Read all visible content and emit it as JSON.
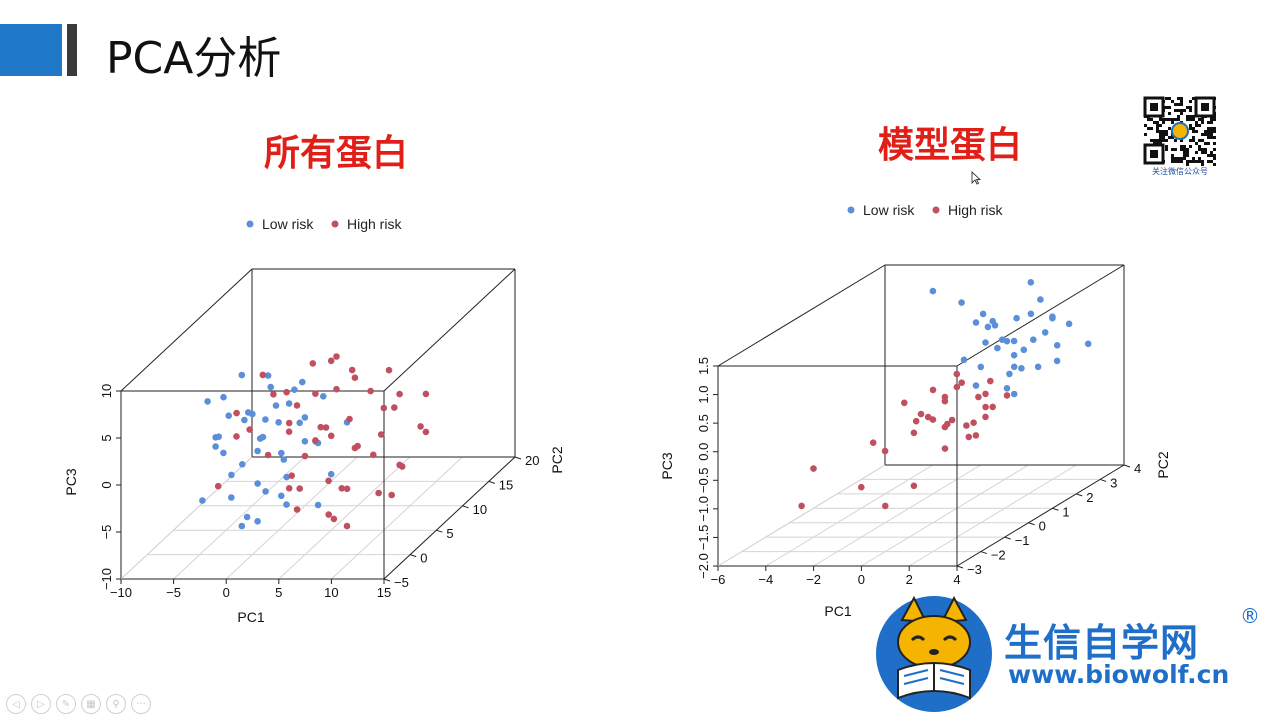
{
  "header": {
    "title": "PCA分析"
  },
  "panels": [
    {
      "title": "所有蛋白"
    },
    {
      "title": "模型蛋白"
    }
  ],
  "colors": {
    "low_risk": "#5b8fd9",
    "high_risk": "#c0505f",
    "accent_blue": "#1f78c8",
    "title_red": "#e02018"
  },
  "qr": {
    "caption": "关注微信公众号"
  },
  "logo": {
    "name": "生信自学网",
    "reg": "®",
    "url": "www.biowolf.cn"
  },
  "controls": [
    {
      "icon": "prev-icon",
      "glyph": "◁"
    },
    {
      "icon": "next-icon",
      "glyph": "▷"
    },
    {
      "icon": "pen-icon",
      "glyph": "✎"
    },
    {
      "icon": "slides-icon",
      "glyph": "▦"
    },
    {
      "icon": "zoom-icon",
      "glyph": "⚲"
    },
    {
      "icon": "more-icon",
      "glyph": "···"
    }
  ],
  "chart_data": [
    {
      "type": "scatter",
      "title": "所有蛋白",
      "legend": [
        "Low risk",
        "High risk"
      ],
      "legend_position": "top",
      "xlabel": "PC1",
      "ylabel": "PC2",
      "zlabel": "PC3",
      "xticks": [
        "−10",
        "−5",
        "0",
        "5",
        "10",
        "15"
      ],
      "yticks": [
        "−5",
        "0",
        "5",
        "10",
        "15",
        "20"
      ],
      "zticks": [
        "−10",
        "−5",
        "0",
        "5",
        "10"
      ],
      "xlim": [
        -10,
        15
      ],
      "ylim": [
        -5,
        20
      ],
      "zlim": [
        -10,
        10
      ],
      "series": [
        {
          "name": "Low risk",
          "color": "#5b8fd9",
          "points": [
            [
              -4.2,
              2.0,
              1.5
            ],
            [
              -2.5,
              3.1,
              -2.0
            ],
            [
              -1.0,
              1.2,
              4.5
            ],
            [
              0.5,
              4.0,
              2.0
            ],
            [
              1.5,
              2.5,
              -0.5
            ],
            [
              -3.0,
              -1.0,
              3.0
            ],
            [
              -5.0,
              0.5,
              -4.5
            ],
            [
              2.0,
              5.5,
              5.5
            ],
            [
              -0.5,
              0.0,
              -6.0
            ],
            [
              3.5,
              3.0,
              0.5
            ],
            [
              -3.5,
              5.0,
              6.5
            ],
            [
              0.0,
              6.0,
              -3.0
            ],
            [
              1.0,
              -2.0,
              6.0
            ],
            [
              -2.0,
              2.0,
              -8.0
            ],
            [
              4.0,
              1.0,
              3.5
            ],
            [
              -1.5,
              4.5,
              0.0
            ],
            [
              2.5,
              0.5,
              -4.0
            ],
            [
              -4.5,
              3.5,
              -1.0
            ],
            [
              0.5,
              2.0,
              8.0
            ],
            [
              3.0,
              6.5,
              -1.5
            ],
            [
              -2.5,
              -0.5,
              7.0
            ],
            [
              1.5,
              3.5,
              -6.5
            ],
            [
              -0.5,
              5.5,
              3.0
            ],
            [
              5.0,
              2.0,
              1.0
            ],
            [
              -3.0,
              1.5,
              4.0
            ],
            [
              2.0,
              -1.5,
              -2.5
            ],
            [
              -1.0,
              3.0,
              -4.0
            ],
            [
              4.5,
              4.5,
              4.5
            ],
            [
              -5.5,
              2.5,
              5.0
            ],
            [
              0.0,
              1.0,
              0.5
            ],
            [
              6.0,
              3.0,
              -3.0
            ],
            [
              -2.0,
              6.5,
              1.0
            ],
            [
              1.0,
              0.0,
              2.5
            ],
            [
              3.0,
              2.0,
              6.5
            ],
            [
              -4.0,
              4.0,
              -6.0
            ],
            [
              2.5,
              5.0,
              2.0
            ],
            [
              -1.5,
              -1.0,
              -1.0
            ],
            [
              5.5,
              1.5,
              -5.5
            ],
            [
              0.0,
              3.5,
              6.0
            ],
            [
              -3.5,
              0.0,
              1.5
            ],
            [
              7.0,
              4.0,
              2.0
            ],
            [
              -0.5,
              2.0,
              -7.5
            ],
            [
              1.5,
              4.0,
              4.0
            ],
            [
              3.5,
              -0.5,
              -1.5
            ],
            [
              -2.5,
              3.5,
              2.5
            ]
          ]
        },
        {
          "name": "High risk",
          "color": "#c0505f",
          "points": [
            [
              5.0,
              3.0,
              2.0
            ],
            [
              7.5,
              4.5,
              -1.0
            ],
            [
              3.0,
              6.0,
              4.0
            ],
            [
              9.0,
              2.0,
              0.5
            ],
            [
              6.0,
              7.0,
              6.0
            ],
            [
              4.0,
              1.0,
              -3.5
            ],
            [
              10.0,
              5.0,
              3.0
            ],
            [
              2.0,
              8.0,
              -2.0
            ],
            [
              8.0,
              3.5,
              7.0
            ],
            [
              5.5,
              -1.0,
              1.0
            ],
            [
              11.0,
              6.5,
              -4.0
            ],
            [
              3.5,
              4.5,
              8.0
            ],
            [
              7.0,
              0.5,
              -6.0
            ],
            [
              12.0,
              4.0,
              5.0
            ],
            [
              1.0,
              6.5,
              2.5
            ],
            [
              6.5,
              2.5,
              -7.5
            ],
            [
              9.5,
              8.0,
              1.5
            ],
            [
              4.5,
              5.5,
              -5.0
            ],
            [
              13.0,
              2.0,
              -1.5
            ],
            [
              0.5,
              3.0,
              5.5
            ],
            [
              8.5,
              6.0,
              -2.5
            ],
            [
              2.5,
              1.5,
              6.5
            ],
            [
              10.5,
              3.0,
              -5.0
            ],
            [
              5.0,
              8.5,
              0.0
            ],
            [
              14.0,
              5.0,
              4.5
            ],
            [
              3.0,
              2.5,
              -6.5
            ],
            [
              7.5,
              7.5,
              3.5
            ],
            [
              -1.0,
              5.0,
              -2.0
            ],
            [
              11.5,
              1.5,
              2.0
            ],
            [
              6.0,
              4.0,
              9.0
            ],
            [
              -3.0,
              3.0,
              3.5
            ],
            [
              4.0,
              7.0,
              -1.0
            ],
            [
              9.0,
              0.0,
              -3.0
            ],
            [
              1.5,
              4.0,
              1.0
            ],
            [
              12.5,
              7.0,
              0.0
            ],
            [
              -2.0,
              6.0,
              6.0
            ],
            [
              5.5,
              5.0,
              5.0
            ],
            [
              8.0,
              2.0,
              -8.0
            ],
            [
              -4.0,
              1.5,
              -3.5
            ],
            [
              2.0,
              3.0,
              -4.5
            ],
            [
              10.0,
              6.0,
              6.5
            ],
            [
              0.0,
              7.5,
              -5.5
            ],
            [
              6.5,
              1.0,
              3.0
            ],
            [
              15.0,
              3.0,
              1.5
            ],
            [
              -3.5,
              4.0,
              0.5
            ],
            [
              4.5,
              6.0,
              7.5
            ],
            [
              7.0,
              3.0,
              -4.5
            ],
            [
              3.5,
              0.0,
              4.0
            ],
            [
              11.0,
              4.5,
              -6.0
            ],
            [
              -1.5,
              2.5,
              2.0
            ]
          ]
        }
      ]
    },
    {
      "type": "scatter",
      "title": "模型蛋白",
      "legend": [
        "Low risk",
        "High risk"
      ],
      "legend_position": "top",
      "xlabel": "PC1",
      "ylabel": "PC2",
      "zlabel": "PC3",
      "xticks": [
        "−6",
        "−4",
        "−2",
        "0",
        "2",
        "4"
      ],
      "yticks": [
        "−3",
        "−2",
        "−1",
        "0",
        "1",
        "2",
        "3",
        "4"
      ],
      "zticks": [
        "−2.0",
        "−1.5",
        "−1.0",
        "−0.5",
        "0.0",
        "0.5",
        "1.0",
        "1.5"
      ],
      "xlim": [
        -6,
        4
      ],
      "ylim": [
        -3,
        4
      ],
      "zlim": [
        -2,
        1.5
      ],
      "series": [
        {
          "name": "Low risk",
          "color": "#5b8fd9",
          "points": [
            [
              1.2,
              1.0,
              0.9
            ],
            [
              2.0,
              1.5,
              1.2
            ],
            [
              1.5,
              0.5,
              0.6
            ],
            [
              2.5,
              2.0,
              1.4
            ],
            [
              0.8,
              1.8,
              1.0
            ],
            [
              1.8,
              0.0,
              0.4
            ],
            [
              3.0,
              1.2,
              0.9
            ],
            [
              2.2,
              2.5,
              0.7
            ],
            [
              1.0,
              0.8,
              1.3
            ],
            [
              2.8,
              0.3,
              1.1
            ],
            [
              0.5,
              2.2,
              0.5
            ],
            [
              1.6,
              1.6,
              0.2
            ],
            [
              2.4,
              1.0,
              0.0
            ],
            [
              3.2,
              2.0,
              0.6
            ],
            [
              1.3,
              2.8,
              1.5
            ],
            [
              2.0,
              0.5,
              1.4
            ],
            [
              0.2,
              1.0,
              1.6
            ],
            [
              2.7,
              1.7,
              0.3
            ],
            [
              1.9,
              2.2,
              1.1
            ],
            [
              3.5,
              1.5,
              1.2
            ],
            [
              1.1,
              0.2,
              0.8
            ],
            [
              2.3,
              2.9,
              0.1
            ],
            [
              0.7,
              1.4,
              1.3
            ],
            [
              2.9,
              0.8,
              0.5
            ],
            [
              1.5,
              1.9,
              0.7
            ],
            [
              -1.0,
              1.0,
              1.8
            ],
            [
              2.6,
              2.4,
              1.0
            ],
            [
              1.7,
              1.2,
              0.9
            ],
            [
              3.0,
              2.7,
              0.8
            ],
            [
              2.1,
              1.3,
              0.4
            ],
            [
              0.9,
              2.5,
              0.3
            ],
            [
              1.4,
              0.9,
              1.2
            ],
            [
              2.5,
              0.6,
              0.2
            ],
            [
              3.3,
              0.5,
              0.9
            ],
            [
              4.0,
              2.5,
              0.5
            ]
          ]
        },
        {
          "name": "High risk",
          "color": "#c0505f",
          "points": [
            [
              0.5,
              0.0,
              0.2
            ],
            [
              1.0,
              -0.5,
              -0.2
            ],
            [
              0.0,
              0.5,
              0.0
            ],
            [
              1.5,
              0.2,
              -0.3
            ],
            [
              0.8,
              -1.0,
              0.1
            ],
            [
              -0.5,
              0.0,
              -0.1
            ],
            [
              1.2,
              1.0,
              -0.4
            ],
            [
              0.3,
              -0.3,
              0.4
            ],
            [
              2.0,
              0.5,
              -0.1
            ],
            [
              -0.2,
              1.2,
              0.3
            ],
            [
              1.6,
              -0.8,
              0.0
            ],
            [
              0.6,
              0.8,
              -0.5
            ],
            [
              1.9,
              0.0,
              0.2
            ],
            [
              -1.0,
              0.3,
              -0.3
            ],
            [
              0.9,
              1.5,
              0.1
            ],
            [
              1.4,
              -0.2,
              0.5
            ],
            [
              0.1,
              -0.9,
              -0.2
            ],
            [
              2.2,
              0.9,
              0.0
            ],
            [
              -0.8,
              -0.4,
              0.2
            ],
            [
              1.1,
              0.4,
              -0.6
            ],
            [
              0.4,
              1.8,
              -0.2
            ],
            [
              1.7,
              -1.2,
              -0.4
            ],
            [
              -0.3,
              0.9,
              -0.5
            ],
            [
              2.5,
              -0.3,
              0.1
            ],
            [
              0.7,
              0.3,
              0.3
            ],
            [
              -4.0,
              -1.0,
              -0.8
            ],
            [
              -3.5,
              -2.0,
              -1.2
            ],
            [
              -2.5,
              0.0,
              -0.6
            ],
            [
              -3.0,
              1.0,
              -1.0
            ],
            [
              -1.5,
              -1.5,
              -1.0
            ],
            [
              0.0,
              -2.0,
              -1.2
            ],
            [
              -2.0,
              2.0,
              -0.7
            ],
            [
              1.0,
              -1.8,
              -0.9
            ],
            [
              0.5,
              1.3,
              -0.8
            ]
          ]
        }
      ]
    }
  ]
}
